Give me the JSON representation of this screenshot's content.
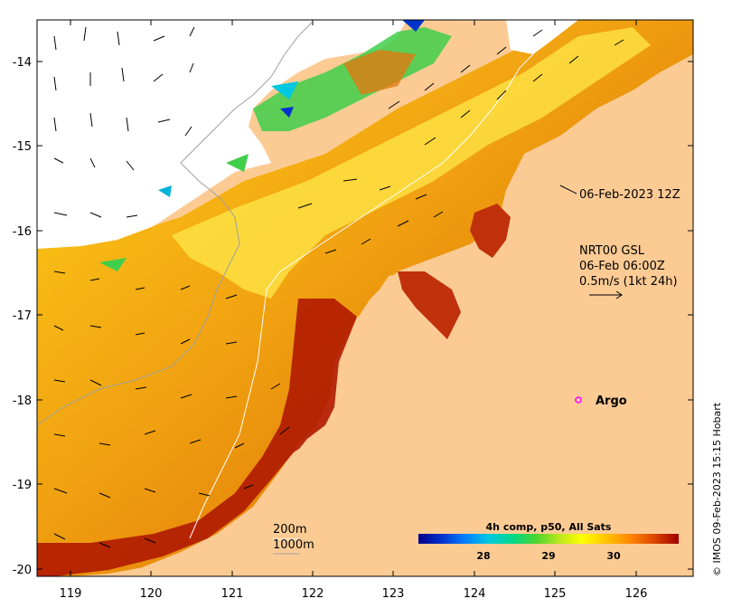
{
  "map": {
    "lat_ticks": [
      "-14",
      "-15",
      "-16",
      "-17",
      "-18",
      "-19",
      "-20"
    ],
    "lon_ticks": [
      "119",
      "120",
      "121",
      "122",
      "123",
      "124",
      "125",
      "126"
    ],
    "lon_range": [
      118.6,
      126.75
    ],
    "lat_range": [
      -20.1,
      -13.5
    ]
  },
  "annotations": {
    "date_label": "06-Feb-2023 12Z",
    "current_source": "NRT00 GSL",
    "current_time": "06-Feb 06:00Z",
    "current_scale": "0.5m/s (1kt 24h)",
    "argo_label": "Argo",
    "isobath_200": "200m",
    "isobath_1000": "1000m"
  },
  "colorbar": {
    "title": "4h comp, p50, All Sats",
    "ticks": [
      "28",
      "29",
      "30"
    ],
    "range": [
      27.0,
      31.0
    ],
    "colors": [
      "#00008b",
      "#0033cc",
      "#0080ff",
      "#00c8e0",
      "#00d88a",
      "#4ad431",
      "#b9e61c",
      "#ffff00",
      "#ffc400",
      "#ff8a00",
      "#e04a00",
      "#a00000"
    ]
  },
  "colors": {
    "land": "#fccb94",
    "nodata": "#ffffff",
    "frame": "#000000"
  },
  "credit": "© IMOS 09-Feb-2023 15:15 Hobart"
}
